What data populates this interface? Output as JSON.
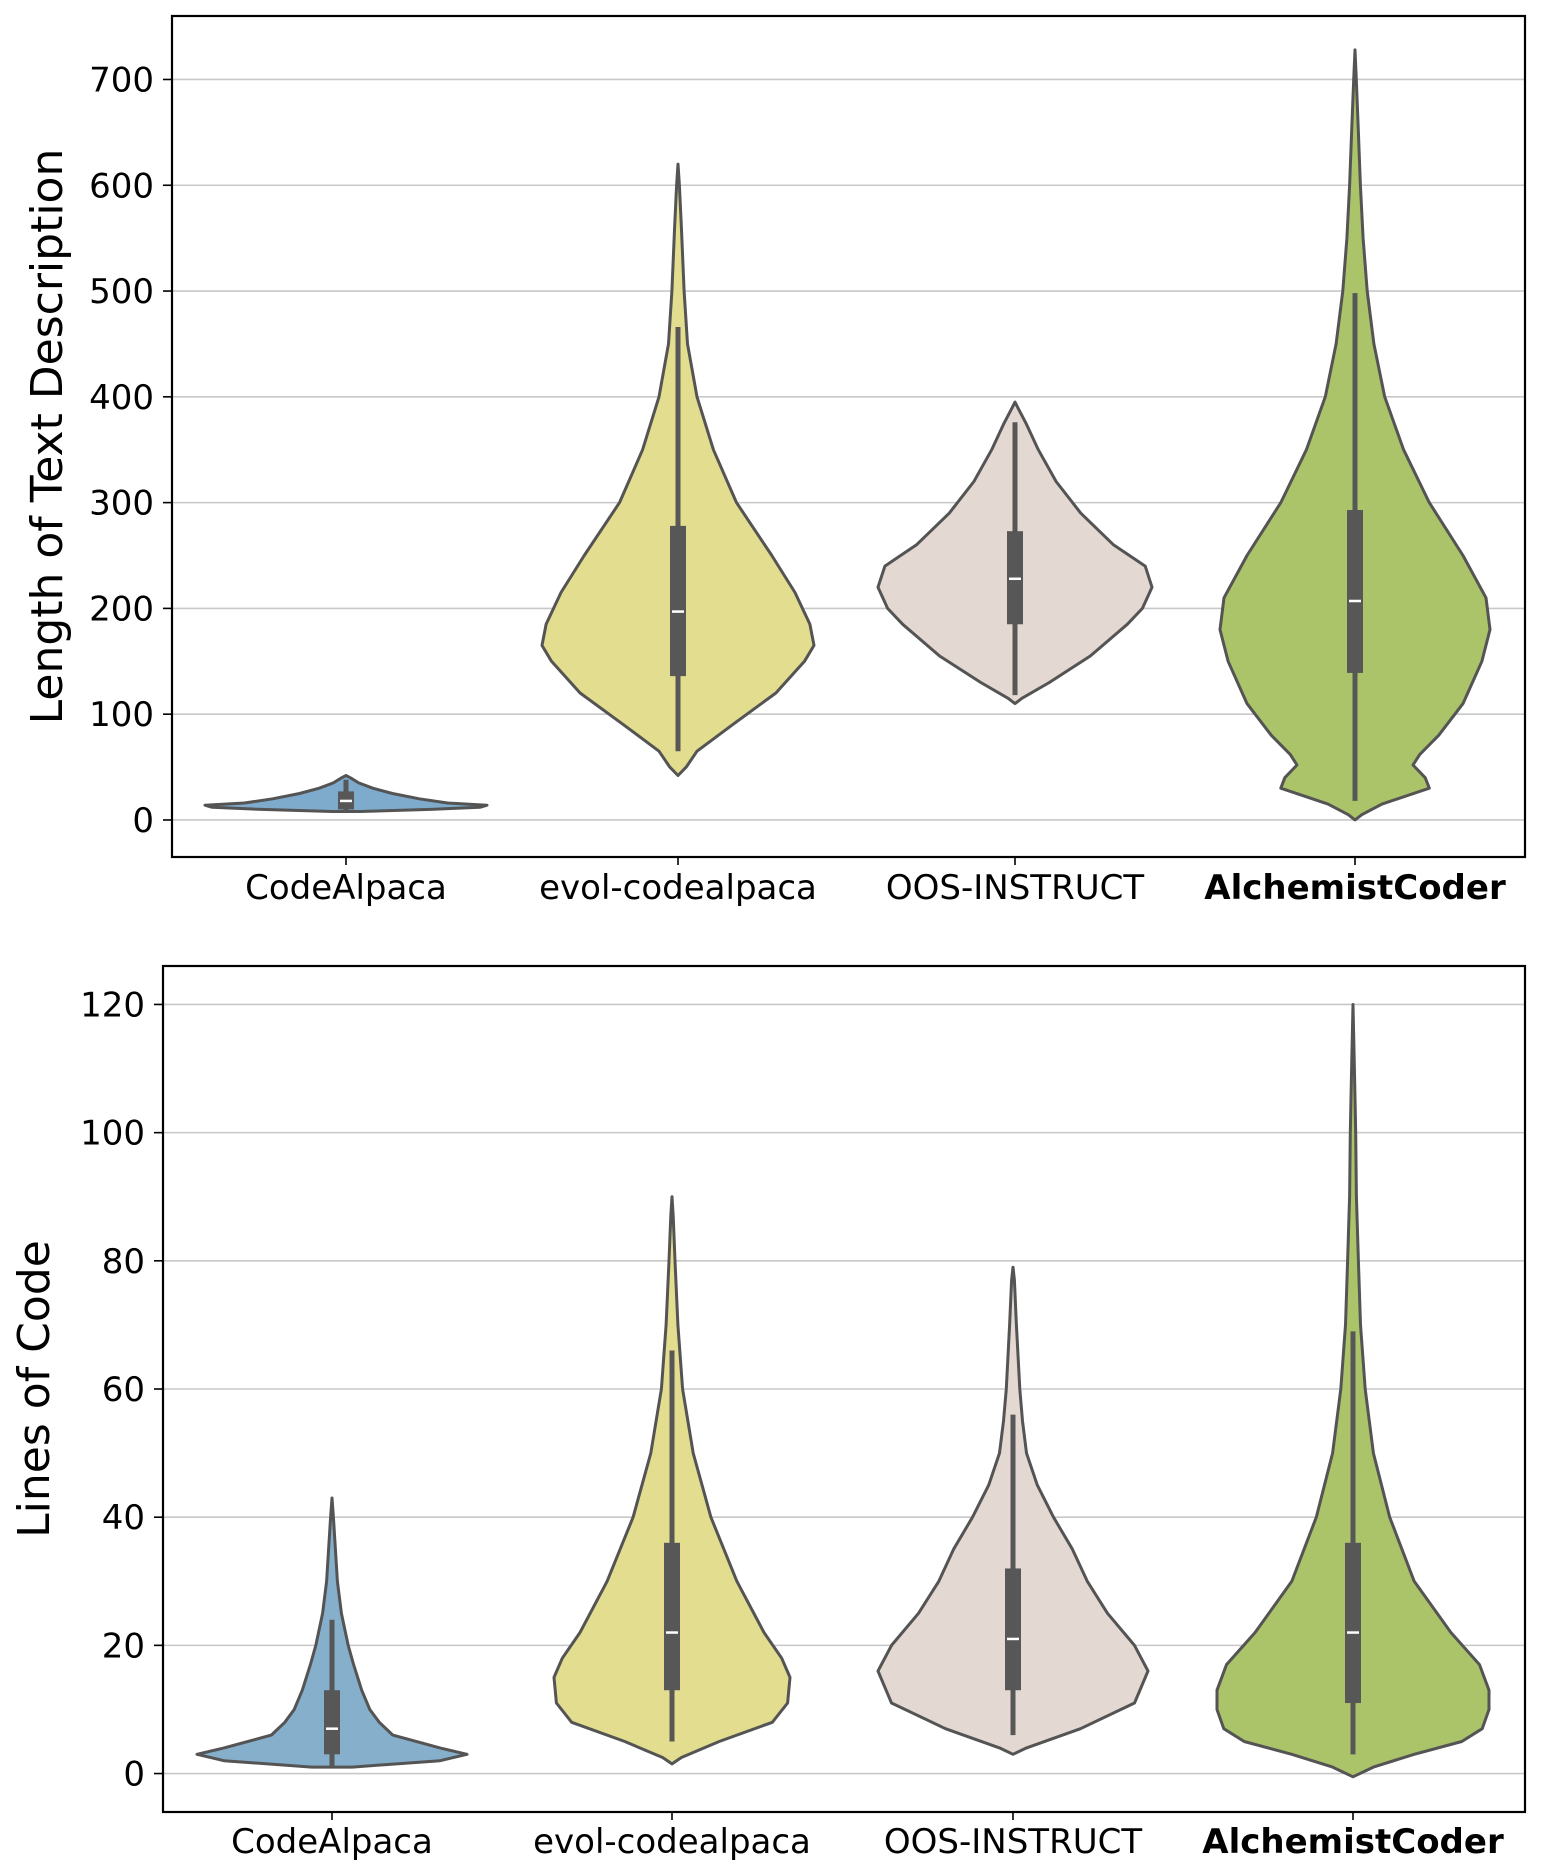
{
  "chart_data": [
    {
      "type": "violin",
      "ylabel": "Length of Text Description",
      "xlabel": "",
      "ylim": [
        -35,
        760
      ],
      "yticks": [
        0,
        100,
        200,
        300,
        400,
        500,
        600,
        700
      ],
      "grid": "horizontal",
      "categories": [
        "CodeAlpaca",
        "evol-codealpaca",
        "OOS-INSTRUCT",
        "AlchemistCoder"
      ],
      "bold_category": "AlchemistCoder",
      "series": [
        {
          "category": "CodeAlpaca",
          "color": "#7eaacc",
          "min": 8,
          "max": 42,
          "q1": 10,
          "median": 18,
          "q3": 27,
          "whisker_low": 8,
          "whisker_high": 38,
          "profile": [
            [
              8,
              0.1
            ],
            [
              10,
              0.6
            ],
            [
              12,
              0.95
            ],
            [
              14,
              1.0
            ],
            [
              16,
              0.72
            ],
            [
              20,
              0.52
            ],
            [
              25,
              0.33
            ],
            [
              30,
              0.19
            ],
            [
              35,
              0.09
            ],
            [
              40,
              0.03
            ],
            [
              42,
              0.0
            ]
          ]
        },
        {
          "category": "evol-codealpaca",
          "color": "#e3dd8f",
          "min": 42,
          "max": 620,
          "q1": 136,
          "median": 197,
          "q3": 278,
          "whisker_low": 65,
          "whisker_high": 466,
          "profile": [
            [
              42,
              0.0
            ],
            [
              50,
              0.06
            ],
            [
              65,
              0.14
            ],
            [
              90,
              0.4
            ],
            [
              120,
              0.72
            ],
            [
              150,
              0.93
            ],
            [
              165,
              1.0
            ],
            [
              185,
              0.97
            ],
            [
              215,
              0.86
            ],
            [
              250,
              0.69
            ],
            [
              300,
              0.43
            ],
            [
              350,
              0.26
            ],
            [
              400,
              0.14
            ],
            [
              450,
              0.07
            ],
            [
              500,
              0.045
            ],
            [
              560,
              0.025
            ],
            [
              600,
              0.01
            ],
            [
              620,
              0.0
            ]
          ]
        },
        {
          "category": "OOS-INSTRUCT",
          "color": "#e4d9d2",
          "min": 110,
          "max": 395,
          "q1": 185,
          "median": 228,
          "q3": 273,
          "whisker_low": 118,
          "whisker_high": 376,
          "profile": [
            [
              110,
              0.0
            ],
            [
              115,
              0.05
            ],
            [
              130,
              0.25
            ],
            [
              155,
              0.55
            ],
            [
              185,
              0.82
            ],
            [
              200,
              0.93
            ],
            [
              220,
              1.0
            ],
            [
              240,
              0.95
            ],
            [
              260,
              0.72
            ],
            [
              290,
              0.48
            ],
            [
              320,
              0.3
            ],
            [
              350,
              0.17
            ],
            [
              375,
              0.08
            ],
            [
              390,
              0.02
            ],
            [
              395,
              0.0
            ]
          ]
        },
        {
          "category": "AlchemistCoder",
          "color": "#abc46a",
          "min": 0,
          "max": 728,
          "q1": 139,
          "median": 207,
          "q3": 293,
          "whisker_low": 18,
          "whisker_high": 498,
          "profile": [
            [
              0,
              0.0
            ],
            [
              5,
              0.05
            ],
            [
              15,
              0.2
            ],
            [
              30,
              0.55
            ],
            [
              40,
              0.52
            ],
            [
              52,
              0.43
            ],
            [
              62,
              0.48
            ],
            [
              80,
              0.62
            ],
            [
              110,
              0.8
            ],
            [
              150,
              0.94
            ],
            [
              180,
              1.0
            ],
            [
              210,
              0.97
            ],
            [
              250,
              0.8
            ],
            [
              300,
              0.55
            ],
            [
              350,
              0.36
            ],
            [
              400,
              0.22
            ],
            [
              450,
              0.14
            ],
            [
              500,
              0.09
            ],
            [
              550,
              0.06
            ],
            [
              600,
              0.04
            ],
            [
              650,
              0.025
            ],
            [
              700,
              0.01
            ],
            [
              728,
              0.0
            ]
          ]
        }
      ]
    },
    {
      "type": "violin",
      "ylabel": "Lines of Code",
      "xlabel": "",
      "ylim": [
        -6,
        126
      ],
      "yticks": [
        0,
        20,
        40,
        60,
        80,
        100,
        120
      ],
      "grid": "horizontal",
      "categories": [
        "CodeAlpaca",
        "evol-codealpaca",
        "OOS-INSTRUCT",
        "AlchemistCoder"
      ],
      "bold_category": "AlchemistCoder",
      "series": [
        {
          "category": "CodeAlpaca",
          "color": "#86afcc",
          "min": 1,
          "max": 43,
          "q1": 3,
          "median": 7,
          "q3": 13,
          "whisker_low": 1,
          "whisker_high": 24,
          "profile": [
            [
              1,
              0.15
            ],
            [
              2,
              0.8
            ],
            [
              3,
              1.0
            ],
            [
              4,
              0.8
            ],
            [
              6,
              0.45
            ],
            [
              8,
              0.35
            ],
            [
              10,
              0.28
            ],
            [
              13,
              0.22
            ],
            [
              17,
              0.16
            ],
            [
              20,
              0.12
            ],
            [
              25,
              0.07
            ],
            [
              30,
              0.04
            ],
            [
              35,
              0.025
            ],
            [
              40,
              0.01
            ],
            [
              43,
              0.0
            ]
          ]
        },
        {
          "category": "evol-codealpaca",
          "color": "#e3dd8f",
          "min": 1.5,
          "max": 90,
          "q1": 13,
          "median": 22,
          "q3": 36,
          "whisker_low": 5,
          "whisker_high": 66,
          "profile": [
            [
              1.5,
              0.0
            ],
            [
              2.5,
              0.08
            ],
            [
              5,
              0.4
            ],
            [
              8,
              0.85
            ],
            [
              11,
              0.98
            ],
            [
              15,
              1.0
            ],
            [
              18,
              0.93
            ],
            [
              22,
              0.78
            ],
            [
              30,
              0.55
            ],
            [
              40,
              0.33
            ],
            [
              50,
              0.18
            ],
            [
              60,
              0.09
            ],
            [
              70,
              0.05
            ],
            [
              80,
              0.025
            ],
            [
              87,
              0.01
            ],
            [
              90,
              0.0
            ]
          ]
        },
        {
          "category": "OOS-INSTRUCT",
          "color": "#e4d9d2",
          "min": 3,
          "max": 79,
          "q1": 13,
          "median": 21,
          "q3": 32,
          "whisker_low": 6,
          "whisker_high": 56,
          "profile": [
            [
              3,
              0.0
            ],
            [
              4,
              0.1
            ],
            [
              7,
              0.5
            ],
            [
              11,
              0.9
            ],
            [
              16,
              1.0
            ],
            [
              20,
              0.9
            ],
            [
              25,
              0.7
            ],
            [
              30,
              0.55
            ],
            [
              35,
              0.44
            ],
            [
              40,
              0.3
            ],
            [
              45,
              0.18
            ],
            [
              50,
              0.1
            ],
            [
              55,
              0.07
            ],
            [
              60,
              0.05
            ],
            [
              70,
              0.025
            ],
            [
              77,
              0.01
            ],
            [
              79,
              0.0
            ]
          ]
        },
        {
          "category": "AlchemistCoder",
          "color": "#abc46a",
          "min": -0.5,
          "max": 120,
          "q1": 11,
          "median": 22,
          "q3": 36,
          "whisker_low": 3,
          "whisker_high": 69,
          "profile": [
            [
              -0.5,
              0.0
            ],
            [
              1,
              0.15
            ],
            [
              3,
              0.45
            ],
            [
              5,
              0.8
            ],
            [
              7,
              0.95
            ],
            [
              10,
              1.0
            ],
            [
              13,
              1.0
            ],
            [
              17,
              0.93
            ],
            [
              22,
              0.72
            ],
            [
              30,
              0.45
            ],
            [
              40,
              0.27
            ],
            [
              50,
              0.15
            ],
            [
              60,
              0.09
            ],
            [
              70,
              0.055
            ],
            [
              80,
              0.04
            ],
            [
              90,
              0.025
            ],
            [
              100,
              0.02
            ],
            [
              110,
              0.01
            ],
            [
              120,
              0.0
            ]
          ]
        }
      ]
    }
  ]
}
